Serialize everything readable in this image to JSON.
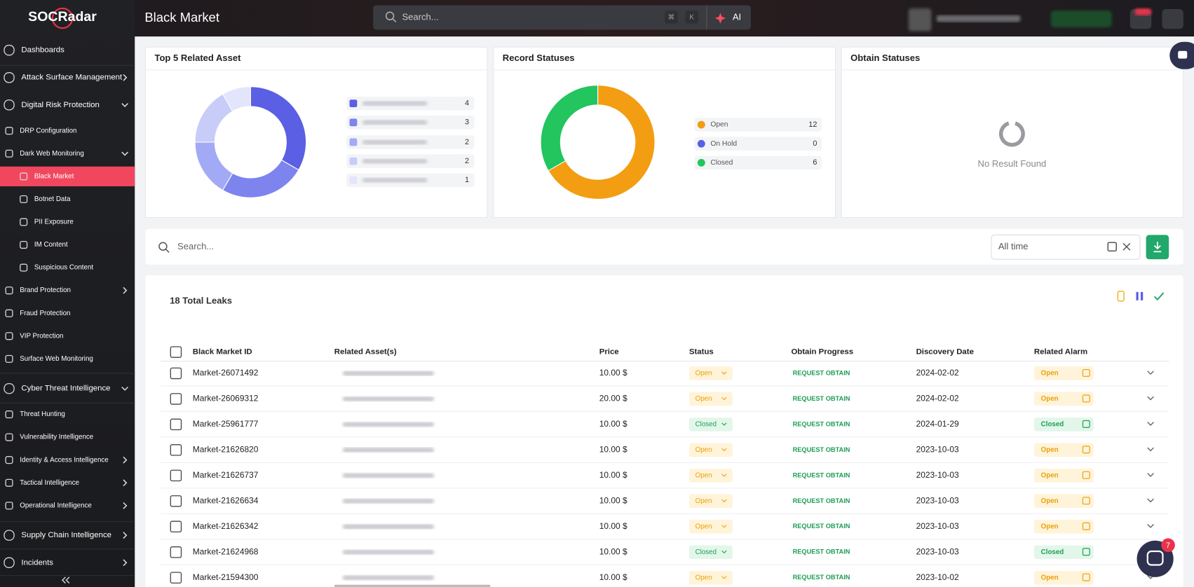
{
  "header": {
    "brand": "SOCRadar",
    "title": "Black Market",
    "search_placeholder": "Search...",
    "shortcut_keys": [
      "⌘",
      "K"
    ],
    "ai_button": "AI"
  },
  "sidebar": {
    "items": [
      "Dashboards",
      "Attack Surface Management",
      "Digital Risk Protection",
      "DRP Configuration",
      "Dark Web Monitoring",
      "Black Market",
      "Botnet Data",
      "PII Exposure",
      "IM Content",
      "Suspicious Content",
      "Brand Protection",
      "Fraud Protection",
      "VIP Protection",
      "Surface Web Monitoring",
      "Cyber Threat Intelligence",
      "Threat Hunting",
      "Vulnerability Intelligence",
      "Identity & Access Intelligence",
      "Tactical Intelligence",
      "Operational Intelligence",
      "Supply Chain Intelligence",
      "Incidents"
    ]
  },
  "widgets": [
    {
      "title": "Top 5 Related Asset",
      "values": [
        4,
        3,
        2,
        2,
        1
      ],
      "colors": [
        "#5b5fe3",
        "#7d84ee",
        "#a3aaf5",
        "#c7ccf9",
        "#e2e5fc"
      ]
    },
    {
      "title": "Record Statuses",
      "legend": [
        {
          "label": "Open",
          "value": 12,
          "color": "#f29d12"
        },
        {
          "label": "On Hold",
          "value": 0,
          "color": "#5b5fe3"
        },
        {
          "label": "Closed",
          "value": 6,
          "color": "#22c55e"
        }
      ]
    },
    {
      "title": "Obtain Statuses",
      "empty_message": "No Result Found"
    }
  ],
  "filters": {
    "search_placeholder": "Search...",
    "date_range": "All time"
  },
  "table": {
    "total": "18 Total Leaks",
    "columns": [
      "Black Market ID",
      "Related Asset(s)",
      "Price",
      "Status",
      "Obtain Progress",
      "Discovery Date",
      "Related Alarm"
    ],
    "rows": [
      [
        "Market-26071492",
        "10.00 $",
        "Open",
        "REQUEST OBTAIN",
        "2024-02-02",
        "Open"
      ],
      [
        "Market-26069312",
        "20.00 $",
        "Open",
        "REQUEST OBTAIN",
        "2024-02-02",
        "Open"
      ],
      [
        "Market-25961777",
        "10.00 $",
        "Closed",
        "REQUEST OBTAIN",
        "2024-01-29",
        "Closed"
      ],
      [
        "Market-21626820",
        "10.00 $",
        "Open",
        "REQUEST OBTAIN",
        "2023-10-03",
        "Open"
      ],
      [
        "Market-21626737",
        "10.00 $",
        "Open",
        "REQUEST OBTAIN",
        "2023-10-03",
        "Open"
      ],
      [
        "Market-21626634",
        "10.00 $",
        "Open",
        "REQUEST OBTAIN",
        "2023-10-03",
        "Open"
      ],
      [
        "Market-21626342",
        "10.00 $",
        "Open",
        "REQUEST OBTAIN",
        "2023-10-03",
        "Open"
      ],
      [
        "Market-21624968",
        "10.00 $",
        "Closed",
        "REQUEST OBTAIN",
        "2023-10-03",
        "Closed"
      ],
      [
        "Market-21594300",
        "10.00 $",
        "Open",
        "REQUEST OBTAIN",
        "2023-10-02",
        "Open"
      ]
    ]
  },
  "chat_badge": "7"
}
